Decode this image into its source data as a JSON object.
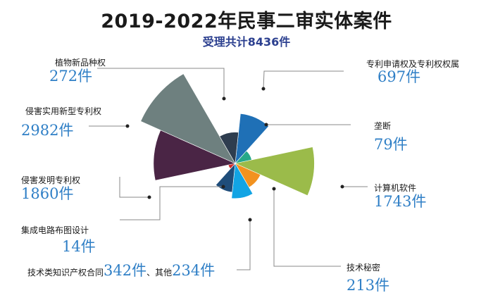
{
  "chart_data": {
    "type": "polar-area",
    "title": "2019-2022年民事二审实体案件",
    "subtitle": "受理共计8436件",
    "unit": "件",
    "segments": [
      {
        "label": "专利申请权及专利权权属",
        "value_text": "697件",
        "value": 697,
        "color": "#1f70b6"
      },
      {
        "label": "垄断",
        "value_text": "79件",
        "value": 79,
        "color": "#26a889"
      },
      {
        "label": "计算机软件",
        "value_text": "1743件",
        "value": 1743,
        "color": "#9bbb4a"
      },
      {
        "label": "技术秘密",
        "value_text": "213件",
        "value": 213,
        "color": "#f2921f"
      },
      {
        "label": "技术类知识产权合同",
        "value_text": "342件",
        "value": 342,
        "color": "#12a4e4"
      },
      {
        "label": "其他",
        "value_text": "234件",
        "value": 234,
        "color": "#1f4d7a"
      },
      {
        "label": "集成电路布图设计",
        "value_text": "14件",
        "value": 14,
        "color": "#d42a2a"
      },
      {
        "label": "侵害发明专利权",
        "value_text": "1860件",
        "value": 1860,
        "color": "#4a2545"
      },
      {
        "label": "侵害实用新型专利权",
        "value_text": "2982件",
        "value": 2982,
        "color": "#6e807f"
      },
      {
        "label": "植物新品种权",
        "value_text": "272件",
        "value": 272,
        "color": "#2e3d4f"
      }
    ]
  }
}
